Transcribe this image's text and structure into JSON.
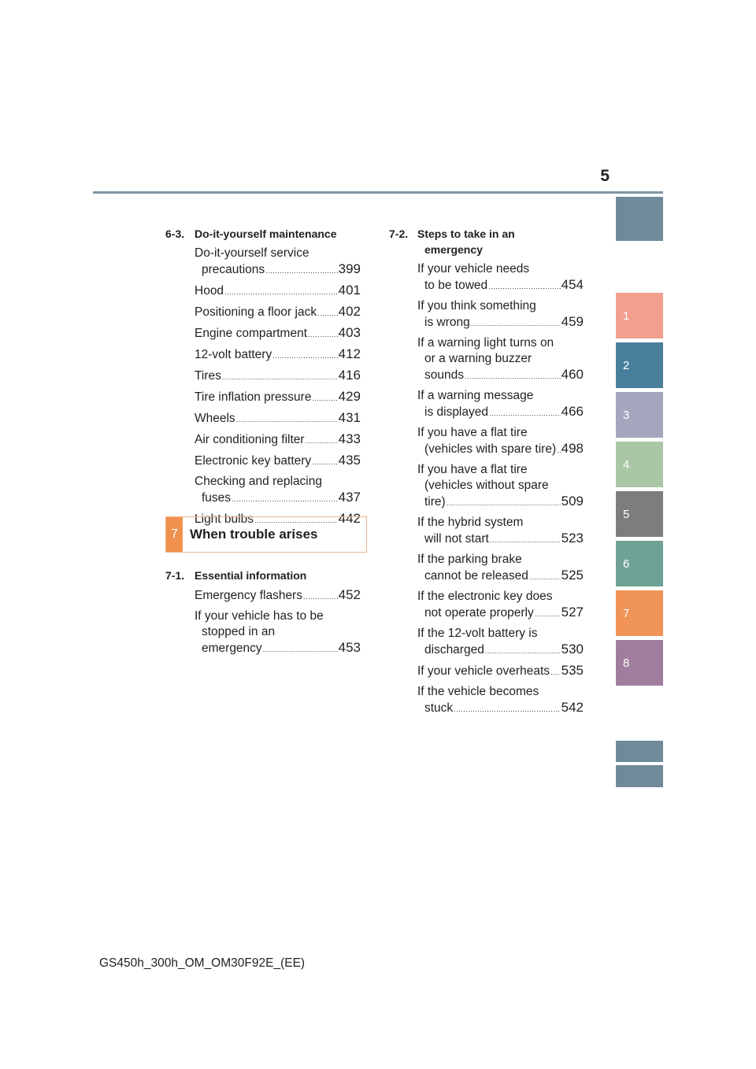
{
  "page_number": "5",
  "colors": {
    "rule": "#7e97a6",
    "chapter_accent": "#f0904f"
  },
  "side_tabs": [
    {
      "label": "",
      "color": "#6f8b99"
    },
    {
      "label": "1",
      "color": "#f39f8e"
    },
    {
      "label": "2",
      "color": "#4a7f9b"
    },
    {
      "label": "3",
      "color": "#a3a6bd"
    },
    {
      "label": "4",
      "color": "#a9c7a4"
    },
    {
      "label": "5",
      "color": "#7d7d7d"
    },
    {
      "label": "6",
      "color": "#6fa195"
    },
    {
      "label": "7",
      "color": "#f09457"
    },
    {
      "label": "8",
      "color": "#a07d9e"
    },
    {
      "label": "",
      "color": "#6f8b99"
    },
    {
      "label": "",
      "color": "#6f8b99"
    }
  ],
  "left": {
    "section_63": {
      "number": "6-3.",
      "title": "Do-it-yourself maintenance",
      "entries": [
        {
          "lines": [
            "Do-it-yourself service"
          ],
          "last": "precautions",
          "page": "399"
        },
        {
          "lines": [],
          "last": "Hood",
          "page": "401"
        },
        {
          "lines": [],
          "last": "Positioning a floor jack",
          "page": "402"
        },
        {
          "lines": [],
          "last": "Engine compartment",
          "page": "403"
        },
        {
          "lines": [],
          "last": "12-volt battery",
          "page": "412"
        },
        {
          "lines": [],
          "last": "Tires",
          "page": "416"
        },
        {
          "lines": [],
          "last": "Tire inflation pressure",
          "page": "429"
        },
        {
          "lines": [],
          "last": "Wheels",
          "page": "431"
        },
        {
          "lines": [],
          "last": "Air conditioning filter",
          "page": "433"
        },
        {
          "lines": [],
          "last": "Electronic key battery",
          "page": "435"
        },
        {
          "lines": [
            "Checking and replacing"
          ],
          "last": "fuses",
          "page": "437"
        },
        {
          "lines": [],
          "last": "Light bulbs",
          "page": "442"
        }
      ]
    },
    "chapter": {
      "number": "7",
      "title": "When trouble arises"
    },
    "section_71": {
      "number": "7-1.",
      "title": "Essential information",
      "entries": [
        {
          "lines": [],
          "last": "Emergency flashers",
          "page": "452"
        },
        {
          "lines": [
            "If your vehicle has to be",
            "stopped in an"
          ],
          "last": "emergency",
          "page": "453"
        }
      ]
    }
  },
  "right": {
    "section_72": {
      "number": "7-2.",
      "title_lines": [
        "Steps to take in an",
        "emergency"
      ],
      "entries": [
        {
          "lines": [
            "If your vehicle needs"
          ],
          "last": "to be towed",
          "page": "454"
        },
        {
          "lines": [
            "If you think something"
          ],
          "last": "is wrong",
          "page": "459"
        },
        {
          "lines": [
            "If a warning light turns on",
            "or a warning buzzer"
          ],
          "last": "sounds",
          "page": "460"
        },
        {
          "lines": [
            "If a warning message"
          ],
          "last": "is displayed",
          "page": "466"
        },
        {
          "lines": [
            "If you have a flat tire"
          ],
          "last": "(vehicles with spare tire)",
          "page": "498"
        },
        {
          "lines": [
            "If you have a flat tire",
            "(vehicles without spare"
          ],
          "last": "tire)",
          "page": "509"
        },
        {
          "lines": [
            "If the hybrid system"
          ],
          "last": "will not start",
          "page": "523"
        },
        {
          "lines": [
            "If the parking brake"
          ],
          "last": "cannot be released",
          "page": "525"
        },
        {
          "lines": [
            "If the electronic key does"
          ],
          "last": "not operate properly",
          "page": "527"
        },
        {
          "lines": [
            "If the 12-volt battery is"
          ],
          "last": "discharged",
          "page": "530"
        },
        {
          "lines": [],
          "last": "If your vehicle overheats",
          "page": "535"
        },
        {
          "lines": [
            "If the vehicle becomes"
          ],
          "last": "stuck",
          "page": "542"
        }
      ]
    }
  },
  "footer": {
    "code": "GS450h_300h_OM_OM30F92E_(EE)"
  }
}
